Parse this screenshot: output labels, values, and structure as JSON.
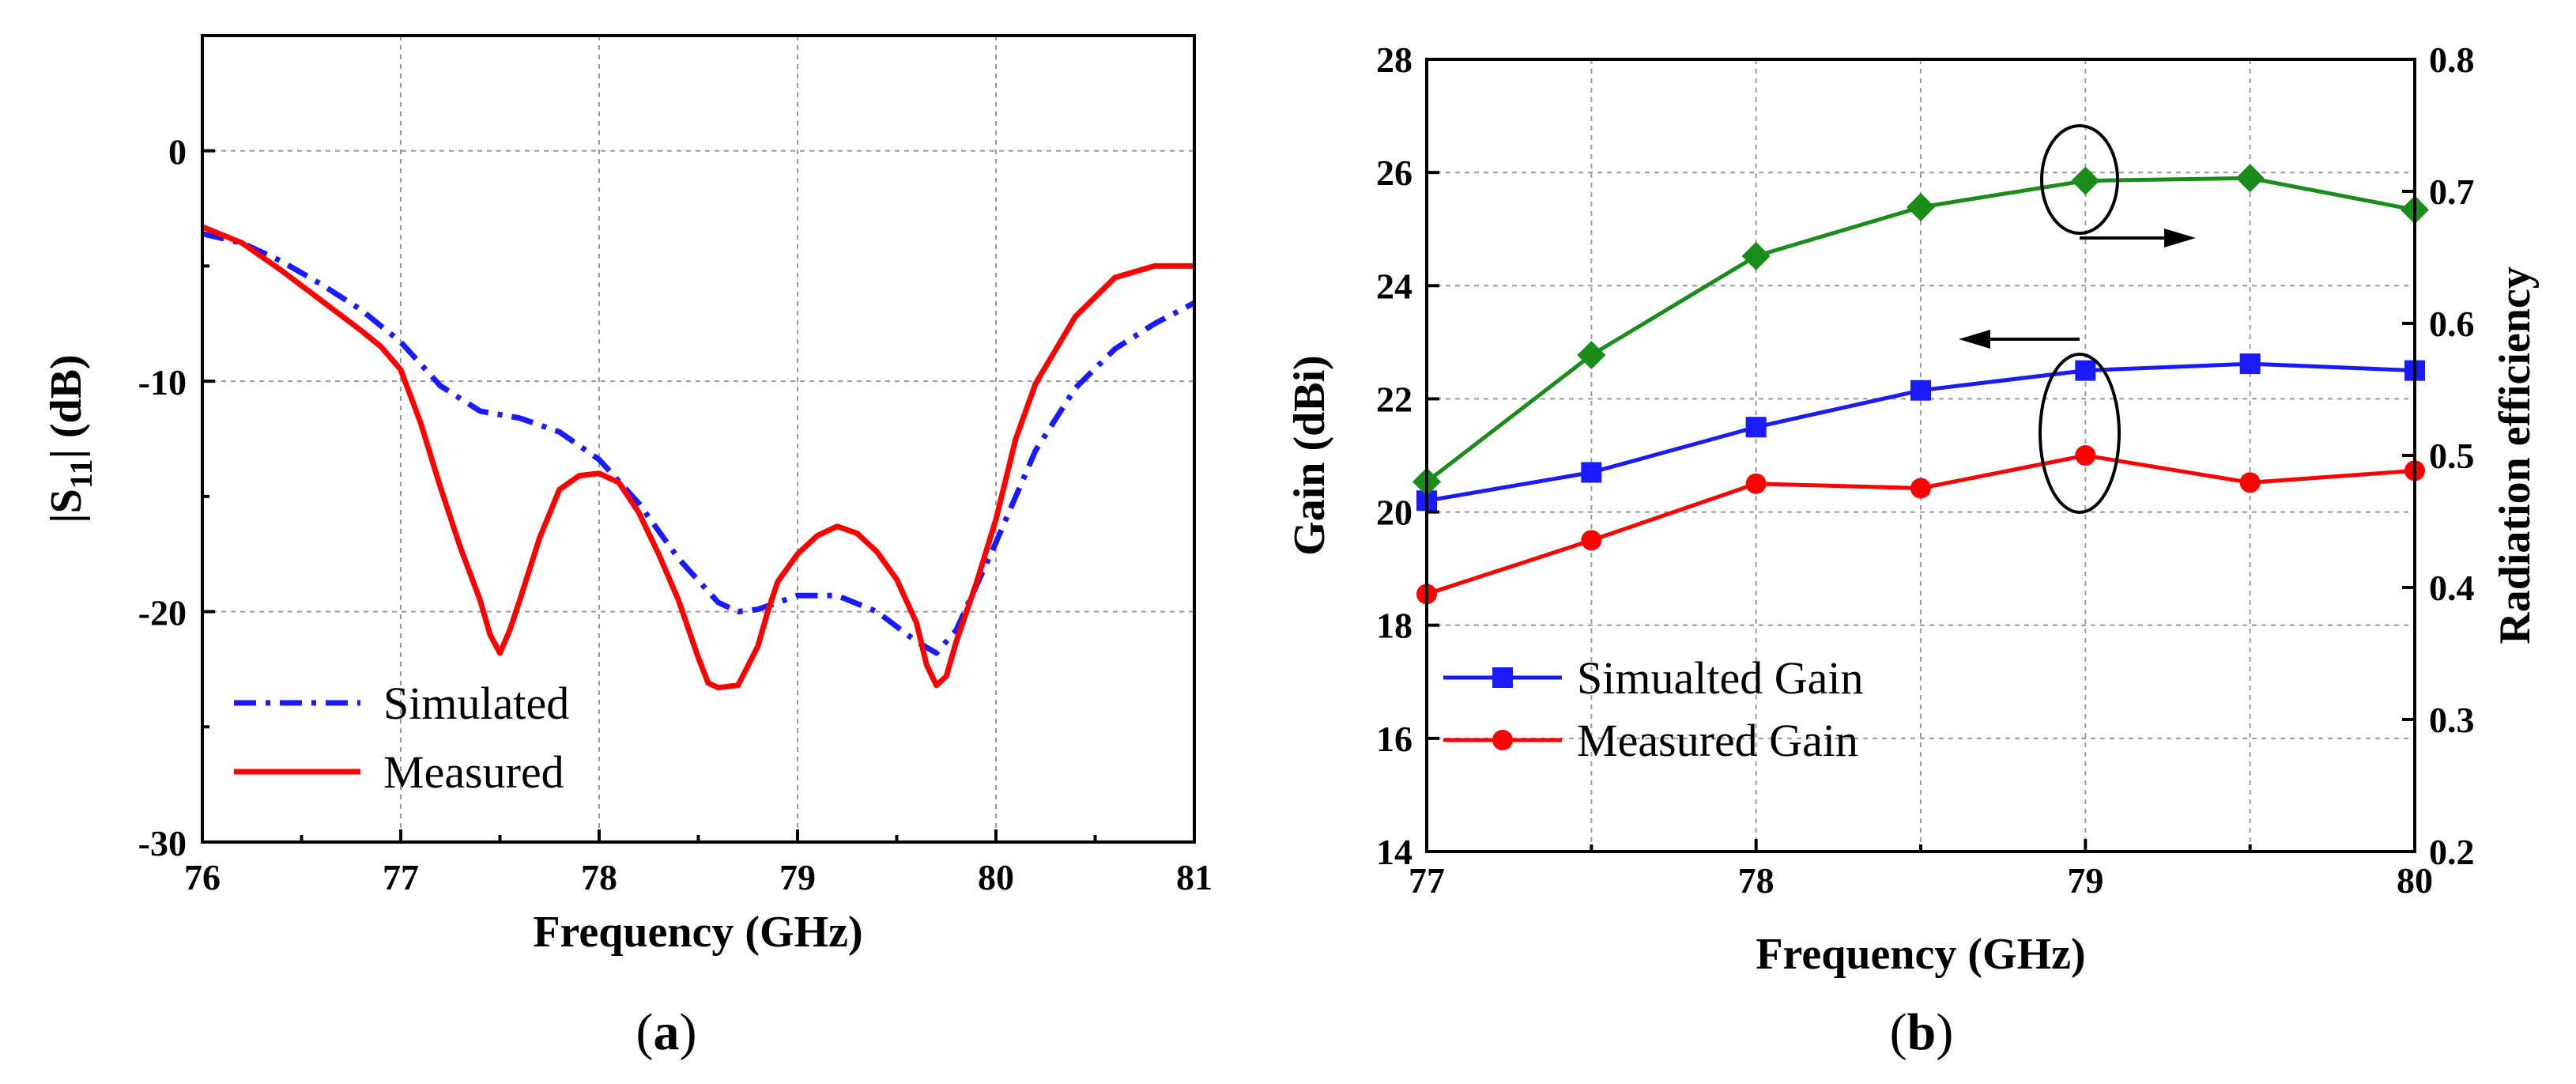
{
  "chart_data": [
    {
      "id": "a",
      "type": "line",
      "caption_open": "(",
      "caption_letter": "a",
      "caption_close": ")",
      "xlabel": "Frequency (GHz)",
      "ylabel_main": "|S",
      "ylabel_sub": "11",
      "ylabel_end": "| (dB)",
      "xlim": [
        76,
        81
      ],
      "ylim": [
        -30,
        5
      ],
      "xticks": [
        76,
        77,
        78,
        79,
        80,
        81
      ],
      "yticks": [
        -30,
        -20,
        -10,
        0
      ],
      "xtick_labels": [
        "76",
        "77",
        "78",
        "79",
        "80",
        "81"
      ],
      "ytick_labels": [
        "-30",
        "-20",
        "-10",
        "0"
      ],
      "grid": true,
      "legend_position": "bottom-left",
      "series": [
        {
          "name": "Simulated",
          "color": "#1a1aff",
          "style": "dashdot",
          "x": [
            76.0,
            76.2,
            76.4,
            76.6,
            76.8,
            77.0,
            77.2,
            77.4,
            77.6,
            77.8,
            78.0,
            78.2,
            78.4,
            78.6,
            78.7,
            78.8,
            79.0,
            79.2,
            79.4,
            79.6,
            79.7,
            79.8,
            80.0,
            80.2,
            80.4,
            80.6,
            80.8,
            81.0
          ],
          "y": [
            -3.6,
            -4.0,
            -4.8,
            -5.8,
            -6.9,
            -8.3,
            -10.2,
            -11.3,
            -11.6,
            -12.2,
            -13.4,
            -15.3,
            -17.7,
            -19.6,
            -20.0,
            -19.9,
            -19.3,
            -19.3,
            -20.0,
            -21.3,
            -21.8,
            -20.8,
            -17.0,
            -13.0,
            -10.3,
            -8.6,
            -7.5,
            -6.6
          ]
        },
        {
          "name": "Measured",
          "color": "#ff0000",
          "style": "solid",
          "x": [
            76.0,
            76.2,
            76.4,
            76.6,
            76.8,
            76.9,
            77.0,
            77.1,
            77.2,
            77.3,
            77.4,
            77.45,
            77.5,
            77.55,
            77.6,
            77.7,
            77.8,
            77.9,
            78.0,
            78.1,
            78.2,
            78.3,
            78.4,
            78.5,
            78.55,
            78.6,
            78.7,
            78.8,
            78.85,
            78.9,
            79.0,
            79.1,
            79.2,
            79.3,
            79.4,
            79.5,
            79.6,
            79.65,
            79.7,
            79.75,
            79.8,
            79.9,
            80.0,
            80.1,
            80.2,
            80.4,
            80.6,
            80.8,
            81.0
          ],
          "y": [
            -3.3,
            -4.0,
            -5.2,
            -6.5,
            -7.8,
            -8.5,
            -9.5,
            -11.8,
            -14.6,
            -17.2,
            -19.5,
            -21.0,
            -21.8,
            -20.8,
            -19.5,
            -16.8,
            -14.7,
            -14.1,
            -14.0,
            -14.4,
            -15.7,
            -17.5,
            -19.5,
            -22.0,
            -23.1,
            -23.3,
            -23.2,
            -21.5,
            -20.0,
            -18.7,
            -17.5,
            -16.7,
            -16.3,
            -16.6,
            -17.4,
            -18.6,
            -20.5,
            -22.3,
            -23.2,
            -22.8,
            -21.3,
            -18.8,
            -16.0,
            -12.5,
            -10.1,
            -7.2,
            -5.5,
            -5.0,
            -5.0
          ]
        }
      ]
    },
    {
      "id": "b",
      "type": "line",
      "caption_open": "(",
      "caption_letter": "b",
      "caption_close": ")",
      "xlabel": "Frequency (GHz)",
      "ylabel": "Gain (dBi)",
      "y2label": "Radiation efficiency",
      "xlim": [
        77,
        80
      ],
      "ylim": [
        14,
        28
      ],
      "y2lim": [
        0.2,
        0.8
      ],
      "xticks": [
        77,
        78,
        79,
        80
      ],
      "yticks": [
        14,
        16,
        18,
        20,
        22,
        24,
        26,
        28
      ],
      "y2ticks": [
        0.2,
        0.3,
        0.4,
        0.5,
        0.6,
        0.7,
        0.8
      ],
      "xtick_labels": [
        "77",
        "78",
        "79",
        "80"
      ],
      "ytick_labels": [
        "14",
        "16",
        "18",
        "20",
        "22",
        "24",
        "26",
        "28"
      ],
      "y2tick_labels": [
        "0.2",
        "0.3",
        "0.4",
        "0.5",
        "0.6",
        "0.7",
        "0.8"
      ],
      "grid": true,
      "legend_position": "bottom-left",
      "annotations": [
        "ellipse around efficiency curve at 79 GHz with arrow pointing right",
        "ellipse around gain curves at 79 GHz with arrow pointing left"
      ],
      "series": [
        {
          "name": "Simualted Gain",
          "color": "#1a1aff",
          "marker": "square",
          "axis": "left",
          "x": [
            77.0,
            77.5,
            78.0,
            78.5,
            79.0,
            79.5,
            80.0
          ],
          "y": [
            20.2,
            20.7,
            21.5,
            22.15,
            22.5,
            22.62,
            22.5
          ]
        },
        {
          "name": "Measured Gain",
          "color": "#ff0000",
          "marker": "circle",
          "axis": "left",
          "x": [
            77.0,
            77.5,
            78.0,
            78.5,
            79.0,
            79.5,
            80.0
          ],
          "y": [
            18.55,
            19.5,
            20.5,
            20.42,
            21.0,
            20.52,
            20.73
          ]
        },
        {
          "name": "Radiation efficiency",
          "color": "#1a8c1a",
          "marker": "diamond",
          "axis": "right",
          "x": [
            77.0,
            77.5,
            78.0,
            78.5,
            79.0,
            79.5,
            80.0
          ],
          "y": [
            0.48,
            0.576,
            0.651,
            0.688,
            0.708,
            0.71,
            0.686
          ]
        }
      ]
    }
  ]
}
